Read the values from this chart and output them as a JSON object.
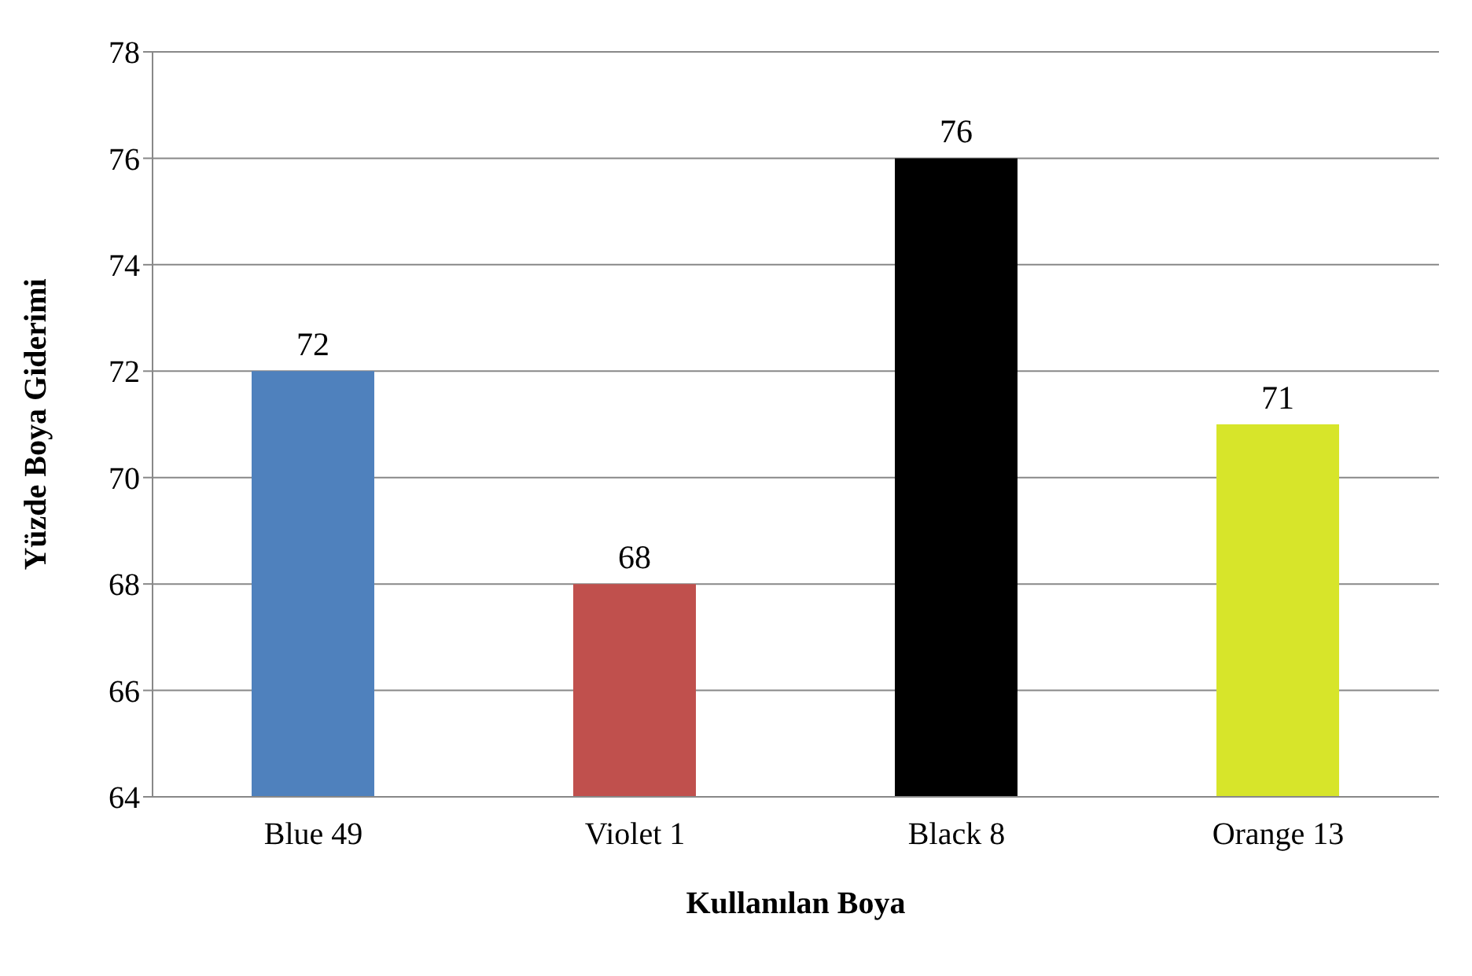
{
  "chart_data": {
    "type": "bar",
    "xlabel": "Kullanılan Boya",
    "ylabel": "Yüzde Boya Giderimi",
    "categories": [
      "Blue 49",
      "Violet 1",
      "Black 8",
      "Orange 13"
    ],
    "values": [
      72,
      68,
      76,
      71
    ],
    "colors": [
      "#4f81bd",
      "#c0504d",
      "#000000",
      "#d7e52a"
    ],
    "ylim": [
      64,
      78
    ],
    "yticks": [
      64,
      66,
      68,
      70,
      72,
      74,
      76,
      78
    ],
    "grid": "y",
    "data_labels": true
  }
}
